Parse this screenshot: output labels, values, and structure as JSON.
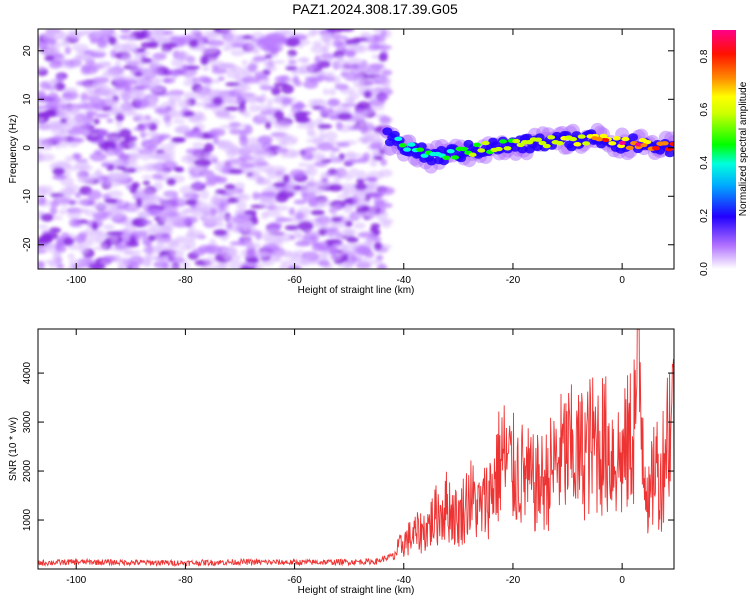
{
  "figure": {
    "title": "PAZ1.2024.308.17.39.G05"
  },
  "chart_data": [
    {
      "type": "heatmap",
      "title": "PAZ1.2024.308.17.39.G05",
      "xlabel": "Height of straight line (km)",
      "ylabel": "Frequency (Hz)",
      "xlim": [
        -107,
        9.5
      ],
      "ylim": [
        -25,
        24.5
      ],
      "xticks": [
        -100,
        -80,
        -60,
        -40,
        -20,
        0
      ],
      "yticks": [
        -20,
        -10,
        0,
        10,
        20
      ],
      "colorbar": {
        "label": "Normalized spectral amplitude",
        "range": [
          0.0,
          0.9
        ],
        "ticks": [
          0.0,
          0.2,
          0.4,
          0.6,
          0.8
        ],
        "colormap": [
          "#ffffff",
          "#9b30ff",
          "#0000ff",
          "#00ffff",
          "#00ff00",
          "#ffff00",
          "#ff8000",
          "#ff0000",
          "#ff0080"
        ]
      },
      "description_of_content": {
        "noise_region_x": [
          -107,
          -43
        ],
        "noise_amplitude": 0.1,
        "signal_track_x": [
          -43,
          9.5
        ],
        "signal_track_frequency_hz": [
          [
            -43,
            2
          ],
          [
            -35,
            -2
          ],
          [
            -25,
            0
          ],
          [
            -15,
            1
          ],
          [
            -5,
            2
          ],
          [
            0,
            1
          ],
          [
            9,
            0
          ]
        ],
        "peak_amplitude": 0.85,
        "peak_x": 0
      },
      "grid": false
    },
    {
      "type": "line",
      "xlabel": "Height of straight line (km)",
      "ylabel": "SNR (10 * v/v)",
      "xlim": [
        -107,
        9.5
      ],
      "ylim": [
        0,
        4900
      ],
      "xticks": [
        -100,
        -80,
        -60,
        -40,
        -20,
        0
      ],
      "yticks": [
        1000,
        2000,
        3000,
        4000
      ],
      "series": [
        {
          "color": "#ee3333",
          "x": [
            -107,
            -100,
            -90,
            -80,
            -70,
            -60,
            -50,
            -45,
            -42,
            -40,
            -38,
            -36,
            -34,
            -32,
            -30,
            -28,
            -26,
            -24,
            -22,
            -20,
            -18,
            -16,
            -14,
            -12,
            -10,
            -8,
            -6,
            -4,
            -2,
            0,
            2,
            3,
            4,
            5,
            6,
            7,
            8,
            9
          ],
          "y": [
            100,
            120,
            110,
            100,
            120,
            110,
            120,
            130,
            250,
            550,
            700,
            800,
            1100,
            1300,
            1000,
            1500,
            1200,
            1600,
            2300,
            2000,
            1900,
            1700,
            1800,
            2200,
            2400,
            2300,
            2500,
            2600,
            2400,
            2200,
            2800,
            4100,
            2500,
            1200,
            2300,
            1700,
            2700,
            3200
          ]
        }
      ],
      "grid": false
    }
  ]
}
